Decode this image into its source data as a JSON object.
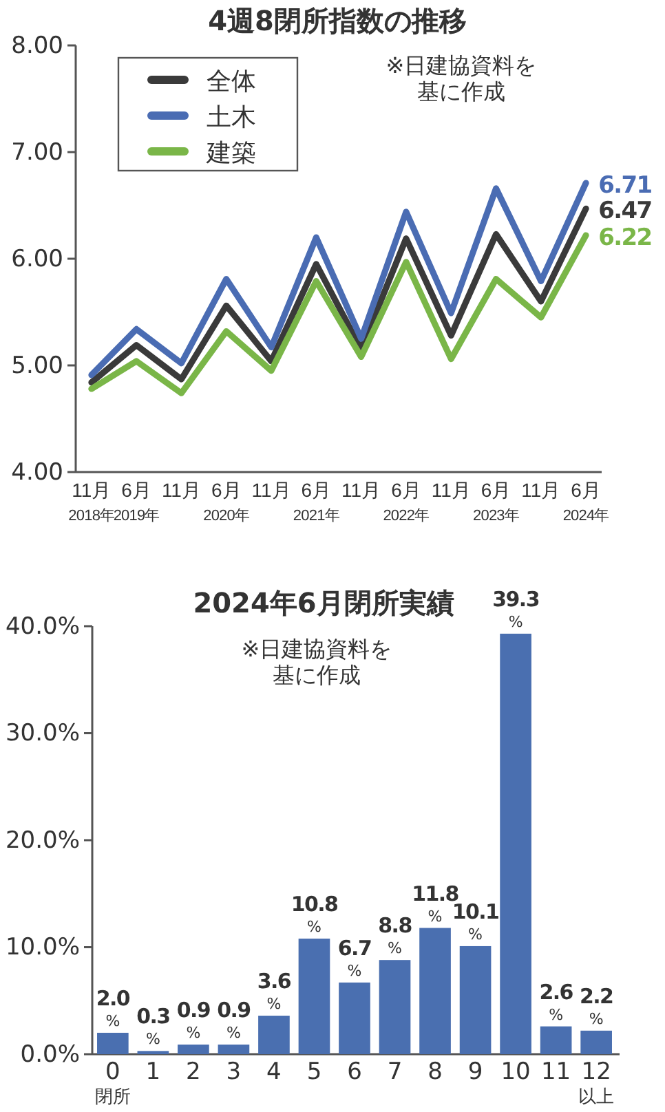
{
  "chart_data": [
    {
      "type": "line",
      "title": "4週8閉所指数の推移",
      "categories": [
        "11月$_{2018年}$",
        "6月$_{2019年}$",
        "11月",
        "6月$_{2020年}$",
        "11月",
        "6月$_{2021年}$",
        "11月",
        "6月$_{2022年}$",
        "11月",
        "6月$_{2023年}$",
        "11月",
        "6月$_{2024年}$"
      ],
      "series": [
        {
          "name": "全体",
          "color": "#3a3a3a",
          "values": [
            4.84,
            5.19,
            4.87,
            5.56,
            5.04,
            5.95,
            5.15,
            6.19,
            5.28,
            6.23,
            5.6,
            6.47
          ],
          "value_labels": [
            null,
            null,
            null,
            null,
            null,
            null,
            null,
            null,
            null,
            null,
            null,
            "6.47"
          ]
        },
        {
          "name": "土木",
          "color": "#4a6cb3",
          "values": [
            4.91,
            5.34,
            5.02,
            5.81,
            5.17,
            6.2,
            5.25,
            6.44,
            5.49,
            6.66,
            5.79,
            6.71
          ],
          "value_labels": [
            null,
            null,
            null,
            null,
            null,
            null,
            null,
            null,
            null,
            null,
            null,
            "6.71"
          ]
        },
        {
          "name": "建築",
          "color": "#7ab648",
          "values": [
            4.78,
            5.04,
            4.74,
            5.32,
            4.95,
            5.79,
            5.08,
            5.97,
            5.06,
            5.81,
            5.45,
            6.22
          ],
          "value_labels": [
            null,
            null,
            null,
            null,
            null,
            null,
            null,
            null,
            null,
            null,
            null,
            "6.22"
          ]
        }
      ],
      "ylim": [
        4,
        8
      ],
      "yticks": [
        {
          "value": 4,
          "label": "4.00"
        },
        {
          "value": 5,
          "label": "5.00"
        },
        {
          "value": 6,
          "label": "6.00"
        },
        {
          "value": 7,
          "label": "7.00"
        },
        {
          "value": 8,
          "label": "8.00"
        }
      ],
      "legend": "top left",
      "grid": false,
      "marker": "none",
      "line_style": "solid",
      "annotations": [
        "※日建協資料を基に作成"
      ]
    },
    {
      "type": "bar",
      "title": "2024年6月閉所実績",
      "categories": [
        "0$_{閉所}$",
        "1",
        "2",
        "3",
        "4",
        "5",
        "6",
        "7",
        "8",
        "9",
        "10",
        "11",
        "12$_{以上}$"
      ],
      "values": [
        2.0,
        0.3,
        0.9,
        0.9,
        3.6,
        10.8,
        6.7,
        8.8,
        11.8,
        10.1,
        39.3,
        2.6,
        2.2
      ],
      "value_labels": [
        "2.0\n%",
        "0.3\n%",
        "0.9\n%",
        "0.9\n%",
        "3.6\n%",
        "10.8\n%",
        "6.7\n%",
        "8.8\n%",
        "11.8\n%",
        "10.1\n%",
        "39.3\n%",
        "2.6\n%",
        "2.2\n%"
      ],
      "color": "#4a6fb0",
      "ylim": [
        0,
        40
      ],
      "yticks": [
        {
          "value": 0,
          "label": "0.0%"
        },
        {
          "value": 10,
          "label": "10.0%"
        },
        {
          "value": 20,
          "label": "20.0%"
        },
        {
          "value": 30,
          "label": "30.0%"
        },
        {
          "value": 40,
          "label": "40.0%"
        }
      ],
      "grid": false,
      "annotations": [
        "※日建協資料を基に作成"
      ]
    }
  ]
}
